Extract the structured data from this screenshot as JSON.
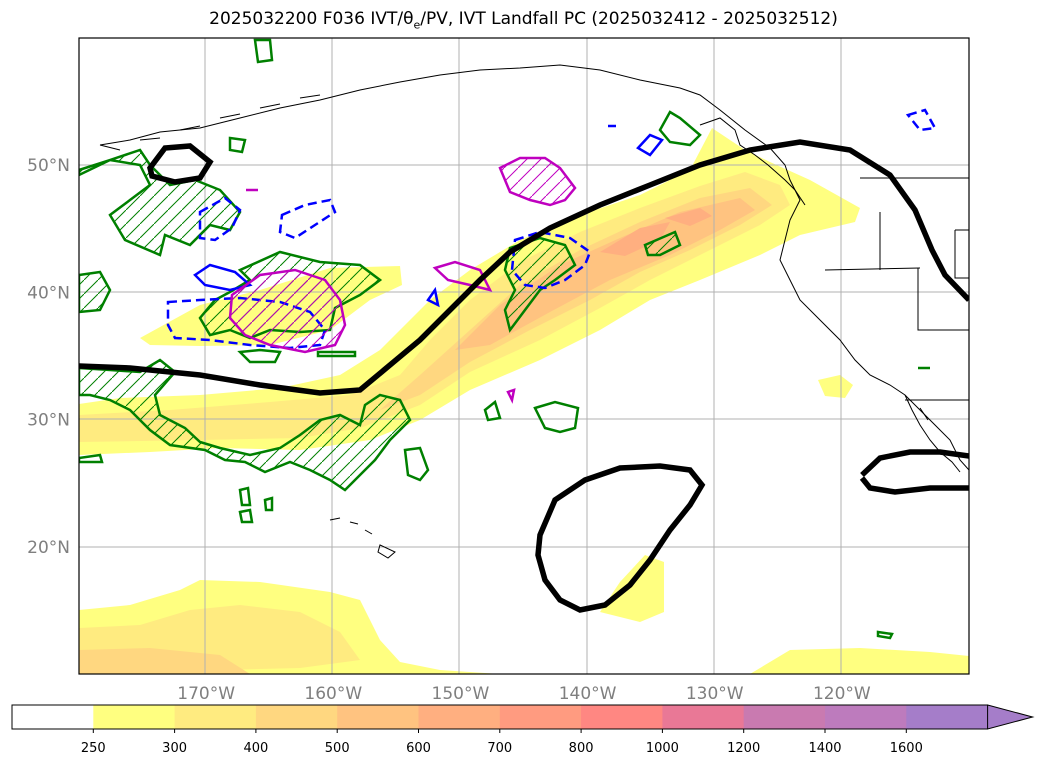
{
  "title": {
    "prefix": "2025032200 F036 IVT/",
    "theta": "θ",
    "theta_sub": "e",
    "suffix": "/PV, IVT Landfall PC (2025032412 - 2025032512)"
  },
  "map": {
    "region": "North Pacific and western North America",
    "lon_range": [
      -180,
      -110
    ],
    "lat_range": [
      10,
      60
    ],
    "lon_ticks": [
      {
        "value": -170,
        "label": "170°W"
      },
      {
        "value": -160,
        "label": "160°W"
      },
      {
        "value": -150,
        "label": "150°W"
      },
      {
        "value": -140,
        "label": "140°W"
      },
      {
        "value": -130,
        "label": "130°W"
      },
      {
        "value": -120,
        "label": "120°W"
      }
    ],
    "lat_ticks": [
      {
        "value": 20,
        "label": "20°N"
      },
      {
        "value": 30,
        "label": "30°N"
      },
      {
        "value": 40,
        "label": "40°N"
      },
      {
        "value": 50,
        "label": "50°N"
      }
    ],
    "gridlines": true,
    "colors": {
      "coastline": "#000000",
      "landfall_pc_contour": "#000000",
      "green_contour": "#008000",
      "blue_contour": "#0000ff",
      "magenta_contour": "#bf00bf",
      "grid": "#b0b0b0",
      "tick_labels": "#7f7f7f"
    }
  },
  "colorbar": {
    "boundaries": [
      "250",
      "300",
      "400",
      "500",
      "600",
      "700",
      "800",
      "1000",
      "1200",
      "1400",
      "1600"
    ],
    "colors": [
      "#ffffff",
      "#ffff80",
      "#ffeb80",
      "#ffd780",
      "#ffc380",
      "#ffaf80",
      "#ff9b80",
      "#ff8782",
      "#e97896",
      "#c97ab0",
      "#bd7bbd",
      "#a57dc9"
    ],
    "extend": "max"
  }
}
